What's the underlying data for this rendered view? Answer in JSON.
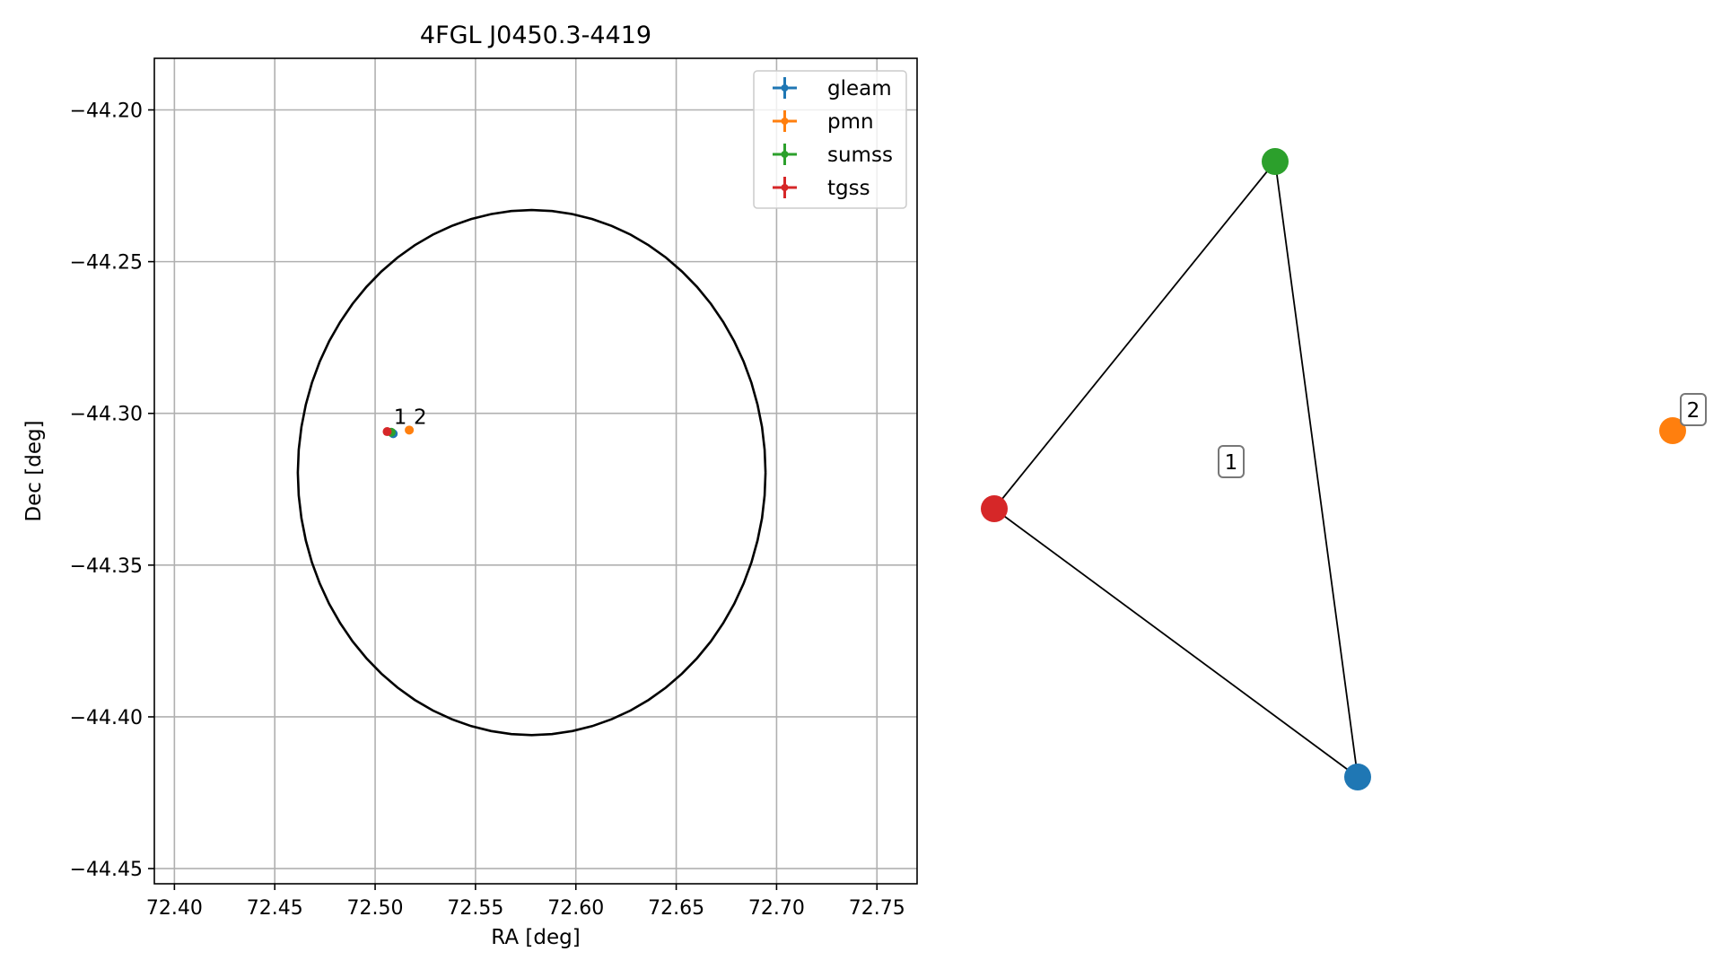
{
  "chart_data": [
    {
      "type": "scatter",
      "title": "4FGL J0450.3-4419",
      "xlabel": "RA [deg]",
      "ylabel": "Dec [deg]",
      "xlim": [
        72.39,
        72.77
      ],
      "ylim": [
        -44.455,
        -44.183
      ],
      "xticks": [
        72.4,
        72.45,
        72.5,
        72.55,
        72.6,
        72.65,
        72.7,
        72.75
      ],
      "xtick_labels": [
        "72.40",
        "72.45",
        "72.50",
        "72.55",
        "72.60",
        "72.65",
        "72.70",
        "72.75"
      ],
      "yticks": [
        -44.2,
        -44.25,
        -44.3,
        -44.35,
        -44.4,
        -44.45
      ],
      "ytick_labels": [
        "−44.20",
        "−44.25",
        "−44.30",
        "−44.35",
        "−44.40",
        "−44.45"
      ],
      "grid": true,
      "legend_position": "top-right",
      "series": [
        {
          "name": "gleam",
          "color": "#1f77b4",
          "points": [
            {
              "x": 72.509,
              "y": -44.3067
            }
          ]
        },
        {
          "name": "pmn",
          "color": "#ff7f0e",
          "points": [
            {
              "x": 72.517,
              "y": -44.3055
            }
          ]
        },
        {
          "name": "sumss",
          "color": "#2ca02c",
          "points": [
            {
              "x": 72.508,
              "y": -44.3062
            }
          ]
        },
        {
          "name": "tgss",
          "color": "#d62728",
          "points": [
            {
              "x": 72.506,
              "y": -44.306
            }
          ]
        }
      ],
      "ellipse": {
        "center_ra": 72.578,
        "center_dec": -44.3195,
        "semi_ra": 0.1165,
        "semi_dec": 0.0865
      },
      "annotations": [
        {
          "text": "1",
          "x": 72.5125,
          "y": -44.3035
        },
        {
          "text": "2",
          "x": 72.5225,
          "y": -44.3035
        }
      ]
    },
    {
      "type": "network",
      "nodes": [
        {
          "id": "sumss",
          "color": "#2ca02c"
        },
        {
          "id": "tgss",
          "color": "#d62728"
        },
        {
          "id": "gleam",
          "color": "#1f77b4"
        },
        {
          "id": "pmn",
          "color": "#ff7f0e"
        }
      ],
      "edges": [
        [
          "sumss",
          "tgss"
        ],
        [
          "sumss",
          "gleam"
        ],
        [
          "tgss",
          "gleam"
        ]
      ],
      "group_labels": [
        "1",
        "2"
      ]
    }
  ]
}
